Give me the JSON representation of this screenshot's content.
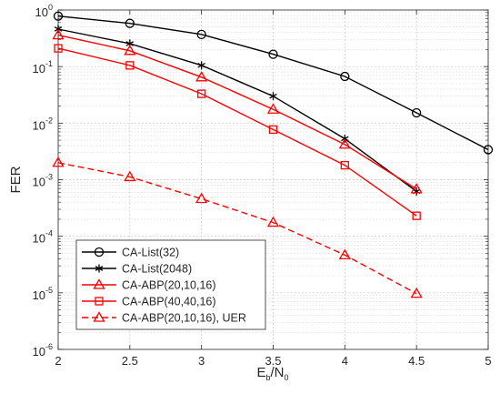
{
  "chart_data": {
    "type": "line",
    "x_scale": "linear",
    "y_scale": "log",
    "xlim": [
      2,
      5
    ],
    "ylim": [
      1e-06,
      1
    ],
    "grid": true,
    "minor_grid": true,
    "x_ticks": [
      "2",
      "2.5",
      "3",
      "3.5",
      "4",
      "4.5",
      "5"
    ],
    "y_ticks": [
      {
        "base": "10",
        "exp": "0",
        "value": 1
      },
      {
        "base": "10",
        "exp": "-1",
        "value": 0.1
      },
      {
        "base": "10",
        "exp": "-2",
        "value": 0.01
      },
      {
        "base": "10",
        "exp": "-3",
        "value": 0.001
      },
      {
        "base": "10",
        "exp": "-4",
        "value": 0.0001
      },
      {
        "base": "10",
        "exp": "-5",
        "value": 1e-05
      },
      {
        "base": "10",
        "exp": "-6",
        "value": 1e-06
      }
    ],
    "xlabel": {
      "main": "E",
      "sub1": "b",
      "mid": "/N",
      "sub2": "0"
    },
    "ylabel": "FER",
    "legend_position": "bottom-left",
    "series": [
      {
        "name": "CA-List(32)",
        "color": "#000000",
        "marker": "circle",
        "dash": "solid",
        "x": [
          2,
          2.5,
          3,
          3.5,
          4,
          4.5,
          5
        ],
        "y": [
          0.78,
          0.58,
          0.37,
          0.165,
          0.067,
          0.0152,
          0.0034
        ]
      },
      {
        "name": "CA-List(2048)",
        "color": "#000000",
        "marker": "asterisk",
        "dash": "solid",
        "x": [
          2,
          2.5,
          3,
          3.5,
          4,
          4.5
        ],
        "y": [
          0.46,
          0.255,
          0.105,
          0.03,
          0.0053,
          0.00062
        ]
      },
      {
        "name": "CA-ABP(20,10,16)",
        "color": "#ff0000",
        "marker": "triangle",
        "dash": "solid",
        "x": [
          2,
          2.5,
          3,
          3.5,
          4,
          4.5
        ],
        "y": [
          0.36,
          0.19,
          0.065,
          0.0175,
          0.0042,
          0.00068
        ]
      },
      {
        "name": "CA-ABP(40,40,16)",
        "color": "#ff0000",
        "marker": "square",
        "dash": "solid",
        "x": [
          2,
          2.5,
          3,
          3.5,
          4,
          4.5
        ],
        "y": [
          0.21,
          0.105,
          0.033,
          0.0077,
          0.0018,
          0.00023
        ]
      },
      {
        "name": "CA-ABP(20,10,16), UER",
        "color": "#ff0000",
        "marker": "triangle",
        "dash": "dashed",
        "x": [
          2,
          2.5,
          3,
          3.5,
          4,
          4.5
        ],
        "y": [
          0.002,
          0.00112,
          0.00046,
          0.000175,
          4.65e-05,
          9.7e-06
        ]
      }
    ]
  }
}
